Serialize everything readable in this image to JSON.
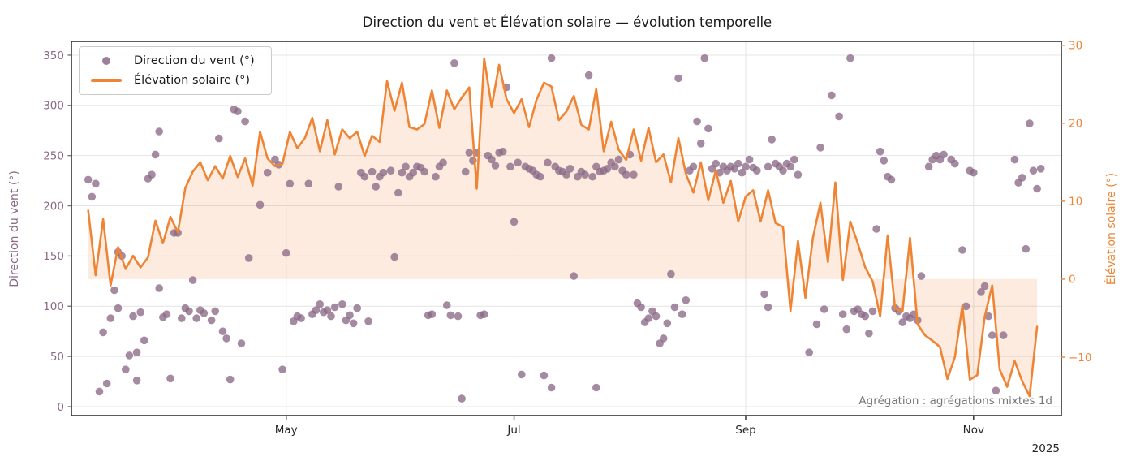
{
  "chart_data": {
    "type": "mixed",
    "title": "Direction du vent et Élévation solaire — évolution temporelle",
    "annotation": "Agrégation : agrégations mixtes 1d",
    "grid": true,
    "grid_color": "#e4e4e4",
    "spine_color": "#262626",
    "x_axis": {
      "unit": "days (daily aggregation, day 0 ≈ 2025-03-09)",
      "domain_days": [
        -4.5,
        260.5
      ],
      "ticks": [
        {
          "day": 53,
          "label": "May"
        },
        {
          "day": 114,
          "label": "Jul"
        },
        {
          "day": 176,
          "label": "Sep"
        },
        {
          "day": 237,
          "label": "Nov"
        }
      ],
      "offset_label": "2025",
      "tick_color": "#262626"
    },
    "left_axis": {
      "label": "Direction du vent (°)",
      "color": "#8a6a86",
      "domain": [
        -8.9,
        363.7
      ],
      "ticks": [
        {
          "v": 0,
          "label": "0"
        },
        {
          "v": 50,
          "label": "50"
        },
        {
          "v": 100,
          "label": "100"
        },
        {
          "v": 150,
          "label": "150"
        },
        {
          "v": 200,
          "label": "200"
        },
        {
          "v": 250,
          "label": "250"
        },
        {
          "v": 300,
          "label": "300"
        },
        {
          "v": 350,
          "label": "350"
        }
      ]
    },
    "right_axis": {
      "label": "Élévation solaire (°)",
      "color": "#ee8434",
      "domain": [
        -17.5,
        30.5
      ],
      "ticks": [
        {
          "v": -10,
          "label": "−10"
        },
        {
          "v": 0,
          "label": "0"
        },
        {
          "v": 10,
          "label": "10"
        },
        {
          "v": 20,
          "label": "20"
        },
        {
          "v": 30,
          "label": "30"
        }
      ]
    },
    "series": [
      {
        "name": "Direction du vent (°)",
        "type": "scatter",
        "axis": "left",
        "color": "#8a6a86",
        "opacity": 0.78,
        "marker_radius": 4.8,
        "points": [
          [
            0,
            226
          ],
          [
            1,
            209
          ],
          [
            2,
            222
          ],
          [
            3,
            15
          ],
          [
            4,
            74
          ],
          [
            5,
            23
          ],
          [
            6,
            88
          ],
          [
            7,
            116
          ],
          [
            8,
            98
          ],
          [
            8,
            154
          ],
          [
            9,
            150
          ],
          [
            10,
            37
          ],
          [
            11,
            51
          ],
          [
            12,
            90
          ],
          [
            13,
            26
          ],
          [
            13,
            54
          ],
          [
            14,
            94
          ],
          [
            15,
            66
          ],
          [
            16,
            227
          ],
          [
            17,
            231
          ],
          [
            18,
            251
          ],
          [
            19,
            274
          ],
          [
            19,
            118
          ],
          [
            20,
            89
          ],
          [
            21,
            92
          ],
          [
            22,
            28
          ],
          [
            23,
            173
          ],
          [
            24,
            173
          ],
          [
            25,
            88
          ],
          [
            26,
            98
          ],
          [
            27,
            95
          ],
          [
            28,
            126
          ],
          [
            29,
            88
          ],
          [
            30,
            96
          ],
          [
            31,
            93
          ],
          [
            33,
            86
          ],
          [
            34,
            95
          ],
          [
            35,
            267
          ],
          [
            36,
            75
          ],
          [
            37,
            68
          ],
          [
            38,
            27
          ],
          [
            39,
            296
          ],
          [
            40,
            294
          ],
          [
            41,
            63
          ],
          [
            42,
            284
          ],
          [
            43,
            148
          ],
          [
            46,
            201
          ],
          [
            48,
            233
          ],
          [
            50,
            246
          ],
          [
            51,
            241
          ],
          [
            52,
            37
          ],
          [
            53,
            153
          ],
          [
            54,
            222
          ],
          [
            55,
            85
          ],
          [
            56,
            90
          ],
          [
            57,
            88
          ],
          [
            59,
            222
          ],
          [
            60,
            92
          ],
          [
            61,
            96
          ],
          [
            62,
            102
          ],
          [
            63,
            94
          ],
          [
            64,
            96
          ],
          [
            65,
            90
          ],
          [
            66,
            99
          ],
          [
            67,
            219
          ],
          [
            68,
            102
          ],
          [
            69,
            86
          ],
          [
            70,
            91
          ],
          [
            71,
            83
          ],
          [
            72,
            98
          ],
          [
            73,
            233
          ],
          [
            74,
            229
          ],
          [
            75,
            85
          ],
          [
            76,
            234
          ],
          [
            77,
            219
          ],
          [
            78,
            229
          ],
          [
            79,
            233
          ],
          [
            81,
            235
          ],
          [
            82,
            149
          ],
          [
            83,
            213
          ],
          [
            84,
            233
          ],
          [
            85,
            239
          ],
          [
            86,
            229
          ],
          [
            87,
            233
          ],
          [
            88,
            239
          ],
          [
            89,
            238
          ],
          [
            90,
            234
          ],
          [
            91,
            91
          ],
          [
            92,
            92
          ],
          [
            93,
            229
          ],
          [
            94,
            239
          ],
          [
            95,
            243
          ],
          [
            96,
            101
          ],
          [
            97,
            91
          ],
          [
            98,
            342
          ],
          [
            99,
            90
          ],
          [
            100,
            8
          ],
          [
            101,
            234
          ],
          [
            102,
            253
          ],
          [
            103,
            245
          ],
          [
            104,
            253
          ],
          [
            105,
            91
          ],
          [
            106,
            92
          ],
          [
            107,
            250
          ],
          [
            108,
            246
          ],
          [
            109,
            240
          ],
          [
            110,
            253
          ],
          [
            111,
            254
          ],
          [
            112,
            318
          ],
          [
            113,
            239
          ],
          [
            114,
            184
          ],
          [
            115,
            243
          ],
          [
            116,
            32
          ],
          [
            117,
            239
          ],
          [
            118,
            237
          ],
          [
            119,
            235
          ],
          [
            120,
            231
          ],
          [
            121,
            229
          ],
          [
            122,
            31
          ],
          [
            123,
            243
          ],
          [
            124,
            347
          ],
          [
            124,
            19
          ],
          [
            125,
            239
          ],
          [
            126,
            235
          ],
          [
            127,
            234
          ],
          [
            128,
            231
          ],
          [
            129,
            237
          ],
          [
            130,
            130
          ],
          [
            131,
            229
          ],
          [
            132,
            234
          ],
          [
            133,
            231
          ],
          [
            134,
            330
          ],
          [
            135,
            229
          ],
          [
            136,
            239
          ],
          [
            136,
            19
          ],
          [
            137,
            234
          ],
          [
            138,
            235
          ],
          [
            139,
            237
          ],
          [
            140,
            243
          ],
          [
            141,
            239
          ],
          [
            142,
            246
          ],
          [
            143,
            235
          ],
          [
            144,
            231
          ],
          [
            145,
            251
          ],
          [
            146,
            231
          ],
          [
            147,
            103
          ],
          [
            148,
            99
          ],
          [
            149,
            84
          ],
          [
            150,
            88
          ],
          [
            151,
            95
          ],
          [
            152,
            90
          ],
          [
            153,
            63
          ],
          [
            154,
            68
          ],
          [
            155,
            83
          ],
          [
            156,
            132
          ],
          [
            157,
            99
          ],
          [
            158,
            327
          ],
          [
            159,
            92
          ],
          [
            160,
            106
          ],
          [
            161,
            235
          ],
          [
            162,
            239
          ],
          [
            163,
            284
          ],
          [
            164,
            262
          ],
          [
            165,
            347
          ],
          [
            166,
            277
          ],
          [
            167,
            237
          ],
          [
            168,
            242
          ],
          [
            169,
            233
          ],
          [
            170,
            239
          ],
          [
            171,
            235
          ],
          [
            172,
            239
          ],
          [
            173,
            237
          ],
          [
            174,
            242
          ],
          [
            175,
            233
          ],
          [
            176,
            239
          ],
          [
            177,
            246
          ],
          [
            178,
            238
          ],
          [
            179,
            235
          ],
          [
            181,
            112
          ],
          [
            182,
            99
          ],
          [
            182,
            239
          ],
          [
            183,
            266
          ],
          [
            184,
            242
          ],
          [
            185,
            239
          ],
          [
            186,
            235
          ],
          [
            187,
            242
          ],
          [
            188,
            239
          ],
          [
            189,
            246
          ],
          [
            190,
            231
          ],
          [
            193,
            54
          ],
          [
            195,
            82
          ],
          [
            196,
            258
          ],
          [
            197,
            97
          ],
          [
            199,
            310
          ],
          [
            201,
            289
          ],
          [
            202,
            92
          ],
          [
            203,
            77
          ],
          [
            204,
            347
          ],
          [
            205,
            95
          ],
          [
            206,
            97
          ],
          [
            207,
            92
          ],
          [
            208,
            90
          ],
          [
            209,
            73
          ],
          [
            210,
            95
          ],
          [
            211,
            177
          ],
          [
            212,
            254
          ],
          [
            213,
            245
          ],
          [
            214,
            229
          ],
          [
            215,
            226
          ],
          [
            216,
            98
          ],
          [
            217,
            95
          ],
          [
            218,
            84
          ],
          [
            219,
            90
          ],
          [
            220,
            88
          ],
          [
            221,
            92
          ],
          [
            222,
            86
          ],
          [
            223,
            130
          ],
          [
            225,
            239
          ],
          [
            226,
            246
          ],
          [
            227,
            250
          ],
          [
            228,
            246
          ],
          [
            229,
            251
          ],
          [
            231,
            246
          ],
          [
            232,
            242
          ],
          [
            234,
            156
          ],
          [
            235,
            100
          ],
          [
            236,
            235
          ],
          [
            237,
            233
          ],
          [
            239,
            114
          ],
          [
            240,
            120
          ],
          [
            241,
            90
          ],
          [
            242,
            71
          ],
          [
            243,
            16
          ],
          [
            245,
            71
          ],
          [
            248,
            246
          ],
          [
            249,
            223
          ],
          [
            250,
            228
          ],
          [
            251,
            157
          ],
          [
            252,
            282
          ],
          [
            253,
            235
          ],
          [
            254,
            217
          ],
          [
            255,
            237
          ]
        ]
      },
      {
        "name": "Élévation solaire (°)",
        "type": "line",
        "axis": "right",
        "color": "#ee8434",
        "line_width": 2.6,
        "fill_to_zero": true,
        "fill_opacity": 0.16,
        "x_start_day": 0,
        "x_step_days": 2,
        "values": [
          8.8,
          0.5,
          7.7,
          -0.8,
          4.1,
          1.3,
          3.0,
          1.5,
          2.8,
          7.5,
          4.6,
          8.0,
          6.0,
          11.7,
          13.8,
          15.0,
          12.7,
          14.5,
          12.9,
          15.8,
          13.1,
          15.5,
          12.0,
          18.9,
          15.5,
          14.5,
          14.8,
          18.9,
          16.8,
          18.1,
          20.7,
          16.4,
          20.4,
          16.0,
          19.2,
          18.1,
          18.9,
          15.8,
          18.4,
          17.6,
          25.4,
          21.6,
          25.2,
          19.5,
          19.2,
          19.9,
          24.2,
          19.4,
          24.2,
          21.8,
          23.3,
          24.6,
          11.6,
          28.3,
          22.1,
          27.5,
          23.1,
          21.3,
          23.1,
          19.5,
          23.0,
          25.2,
          24.7,
          20.4,
          21.5,
          23.5,
          19.8,
          19.2,
          24.4,
          16.4,
          20.2,
          16.6,
          15.3,
          19.2,
          15.2,
          19.4,
          15.0,
          16.0,
          12.4,
          18.1,
          13.5,
          11.1,
          15.0,
          10.1,
          14.0,
          9.8,
          12.6,
          7.4,
          10.6,
          11.4,
          7.4,
          11.4,
          7.2,
          6.7,
          -4.1,
          4.9,
          -2.4,
          5.3,
          9.8,
          2.2,
          12.4,
          -0.1,
          7.4,
          4.6,
          1.5,
          -0.3,
          -4.8,
          5.6,
          -3.8,
          -4.1,
          5.3,
          -5.8,
          -7.2,
          -7.9,
          -8.7,
          -12.8,
          -10.0,
          -3.4,
          -12.9,
          -12.3,
          -4.8,
          -0.8,
          -11.6,
          -13.8,
          -10.5,
          -13.1,
          -15.0,
          -6.1
        ]
      }
    ]
  },
  "legend": {
    "entries": [
      {
        "label": "Direction du vent (°)",
        "marker": "dot"
      },
      {
        "label": "Élévation solaire (°)",
        "marker": "line"
      }
    ]
  }
}
